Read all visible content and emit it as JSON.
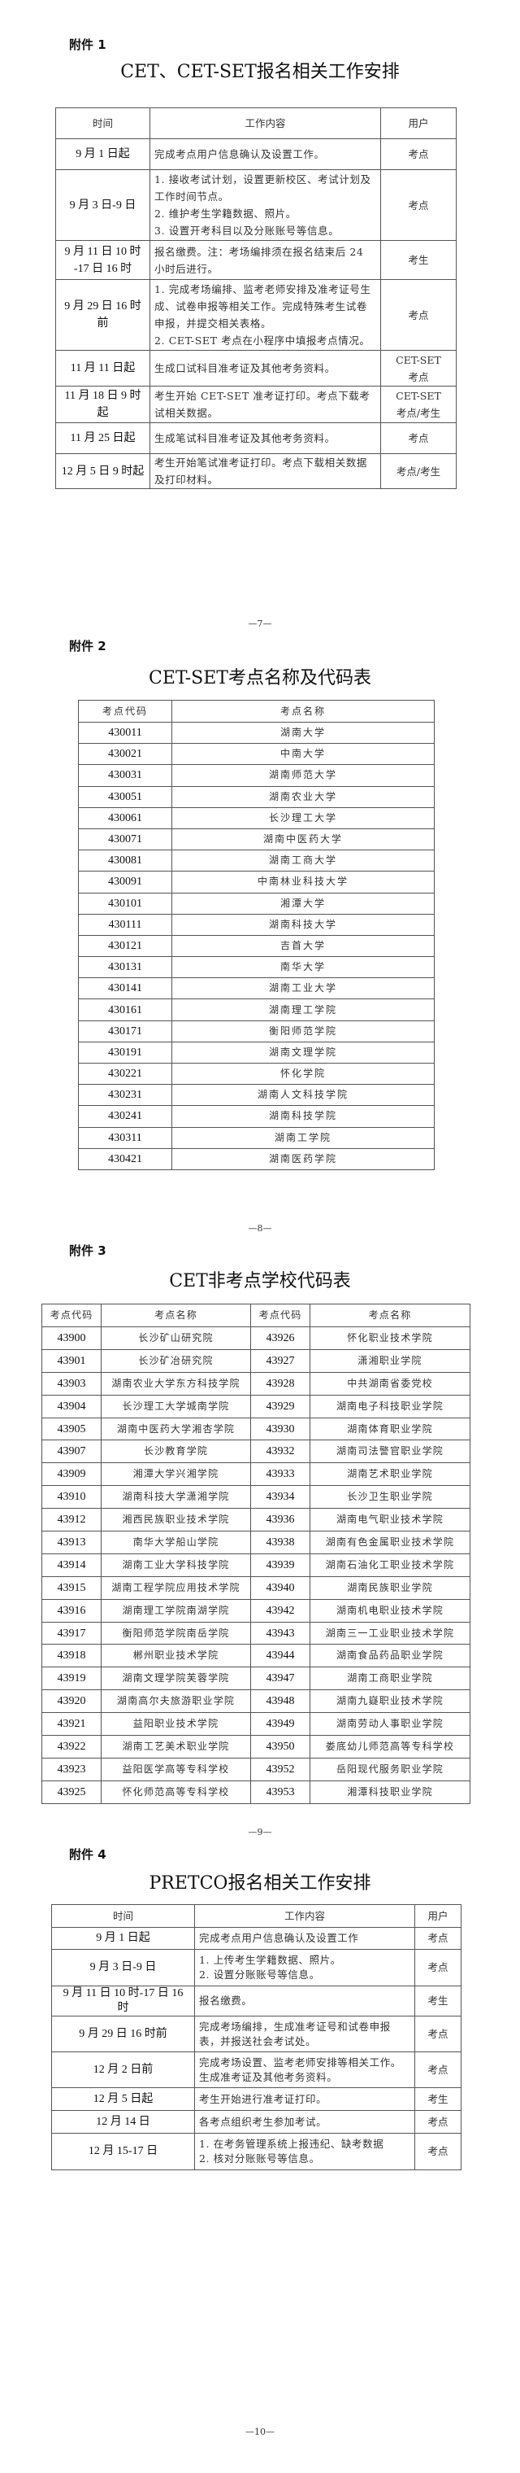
{
  "annex1": {
    "label": "附件 1",
    "title": "CET、CET-SET报名相关工作安排",
    "headers": [
      "时间",
      "工作内容",
      "用户"
    ],
    "rows": [
      {
        "time": [
          "9 月 1 日起"
        ],
        "content": [
          "完成考点用户信息确认及设置工作。"
        ],
        "user": [
          "考点"
        ]
      },
      {
        "time": [
          "9 月 3 日-9 日"
        ],
        "content": [
          "1. 接收考试计划，设置更新校区、考试计划及工作时间节点。",
          "2. 维护考生学籍数据、照片。",
          "3. 设置开考科目以及分账账号等信息。"
        ],
        "user": [
          "考点"
        ]
      },
      {
        "time": [
          "9 月 11 日 10 时",
          "-17 日 16 时"
        ],
        "content": [
          "报名缴费。注：考场编排须在报名结束后 24 小时后进行。"
        ],
        "user": [
          "考生"
        ]
      },
      {
        "time": [
          "9 月 29 日 16 时前"
        ],
        "content": [
          "1. 完成考场编排、监考老师安排及准考证号生成、试卷申报等相关工作。完成特殊考生试卷申报，并提交相关表格。",
          "2. CET-SET 考点在小程序中填报考点情况。"
        ],
        "user": [
          "考点"
        ]
      },
      {
        "time": [
          "11 月 11 日起"
        ],
        "content": [
          "生成口试科目准考证及其他考务资料。"
        ],
        "user": [
          "CET-SET",
          "考点"
        ]
      },
      {
        "time": [
          "11 月 18 日 9 时起"
        ],
        "content": [
          "考生开始 CET-SET 准考证打印。考点下载考试相关数据。"
        ],
        "user": [
          "CET-SET",
          "考点/考生"
        ]
      },
      {
        "time": [
          "11 月 25 日起"
        ],
        "content": [
          "生成笔试科目准考证及其他考务资料。"
        ],
        "user": [
          "考点"
        ]
      },
      {
        "time": [
          "12 月 5 日 9 时起"
        ],
        "content": [
          "考生开始笔试准考证打印。考点下载相关数据及打印材料。"
        ],
        "user": [
          "考点/考生"
        ]
      }
    ],
    "page_number": "—7—"
  },
  "annex2": {
    "label": "附件 2",
    "title": "CET-SET考点名称及代码表",
    "headers": [
      "考点代码",
      "考点名称"
    ],
    "rows": [
      [
        "430011",
        "湖南大学"
      ],
      [
        "430021",
        "中南大学"
      ],
      [
        "430031",
        "湖南师范大学"
      ],
      [
        "430051",
        "湖南农业大学"
      ],
      [
        "430061",
        "长沙理工大学"
      ],
      [
        "430071",
        "湖南中医药大学"
      ],
      [
        "430081",
        "湖南工商大学"
      ],
      [
        "430091",
        "中南林业科技大学"
      ],
      [
        "430101",
        "湘潭大学"
      ],
      [
        "430111",
        "湖南科技大学"
      ],
      [
        "430121",
        "吉首大学"
      ],
      [
        "430131",
        "南华大学"
      ],
      [
        "430141",
        "湖南工业大学"
      ],
      [
        "430161",
        "湖南理工学院"
      ],
      [
        "430171",
        "衡阳师范学院"
      ],
      [
        "430191",
        "湖南文理学院"
      ],
      [
        "430221",
        "怀化学院"
      ],
      [
        "430231",
        "湖南人文科技学院"
      ],
      [
        "430241",
        "湖南科技学院"
      ],
      [
        "430311",
        "湖南工学院"
      ],
      [
        "430421",
        "湖南医药学院"
      ]
    ],
    "page_number": "—8—"
  },
  "annex3": {
    "label": "附件 3",
    "title": "CET非考点学校代码表",
    "headers": [
      "考点代码",
      "考点名称",
      "考点代码",
      "考点名称"
    ],
    "rows": [
      [
        "43900",
        "长沙矿山研究院",
        "43926",
        "怀化职业技术学院"
      ],
      [
        "43901",
        "长沙矿冶研究院",
        "43927",
        "潇湘职业学院"
      ],
      [
        "43903",
        "湖南农业大学东方科技学院",
        "43928",
        "中共湖南省委党校"
      ],
      [
        "43904",
        "长沙理工大学城南学院",
        "43929",
        "湖南电子科技职业学院"
      ],
      [
        "43905",
        "湖南中医药大学湘杏学院",
        "43930",
        "湖南体育职业学院"
      ],
      [
        "43907",
        "长沙教育学院",
        "43932",
        "湖南司法警官职业学院"
      ],
      [
        "43909",
        "湘潭大学兴湘学院",
        "43933",
        "湖南艺术职业学院"
      ],
      [
        "43910",
        "湖南科技大学潇湘学院",
        "43934",
        "长沙卫生职业学院"
      ],
      [
        "43912",
        "湘西民族职业技术学院",
        "43936",
        "湖南电气职业技术学院"
      ],
      [
        "43913",
        "南华大学船山学院",
        "43938",
        "湖南有色金属职业技术学院"
      ],
      [
        "43914",
        "湖南工业大学科技学院",
        "43939",
        "湖南石油化工职业技术学院"
      ],
      [
        "43915",
        "湖南工程学院应用技术学院",
        "43940",
        "湖南民族职业学院"
      ],
      [
        "43916",
        "湖南理工学院南湖学院",
        "43942",
        "湖南机电职业技术学院"
      ],
      [
        "43917",
        "衡阳师范学院南岳学院",
        "43943",
        "湖南三一工业职业技术学院"
      ],
      [
        "43918",
        "郴州职业技术学院",
        "43944",
        "湖南食品药品职业学院"
      ],
      [
        "43919",
        "湖南文理学院芙蓉学院",
        "43947",
        "湖南工商职业学院"
      ],
      [
        "43920",
        "湖南高尔夫旅游职业学院",
        "43948",
        "湖南九嶷职业技术学院"
      ],
      [
        "43921",
        "益阳职业技术学院",
        "43949",
        "湖南劳动人事职业学院"
      ],
      [
        "43922",
        "湖南工艺美术职业学院",
        "43950",
        "娄底幼儿师范高等专科学校"
      ],
      [
        "43923",
        "益阳医学高等专科学校",
        "43952",
        "岳阳现代服务职业学院"
      ],
      [
        "43925",
        "怀化师范高等专科学校",
        "43953",
        "湘潭科技职业学院"
      ]
    ],
    "page_number": "—9—"
  },
  "annex4": {
    "label": "附件 4",
    "title": "PRETCO报名相关工作安排",
    "headers": [
      "时间",
      "工作内容",
      "用户"
    ],
    "rows": [
      {
        "time": [
          "9 月 1 日起"
        ],
        "content": [
          "完成考点用户信息确认及设置工作"
        ],
        "user": [
          "考点"
        ]
      },
      {
        "time": [
          "9 月 3 日-9 日"
        ],
        "content": [
          "1. 上传考生学籍数据、照片。",
          "2. 设置分账账号等信息。"
        ],
        "user": [
          "考点"
        ]
      },
      {
        "time": [
          "9 月 11 日 10 时-17 日 16 时"
        ],
        "content": [
          "报名缴费。"
        ],
        "user": [
          "考生"
        ]
      },
      {
        "time": [
          "9 月 29 日 16 时前"
        ],
        "content": [
          "完成考场编排，生成准考证号和试卷申报表，并报送社会考试处。"
        ],
        "user": [
          "考点"
        ]
      },
      {
        "time": [
          "12 月 2 日前"
        ],
        "content": [
          "完成考场设置、监考老师安排等相关工作。生成准考证及其他考务资料。"
        ],
        "user": [
          "考点"
        ]
      },
      {
        "time": [
          "12 月 5 日起"
        ],
        "content": [
          "考生开始进行准考证打印。"
        ],
        "user": [
          "考生"
        ]
      },
      {
        "time": [
          "12 月 14 日"
        ],
        "content": [
          "各考点组织考生参加考试。"
        ],
        "user": [
          "考点"
        ]
      },
      {
        "time": [
          "12 月 15-17 日"
        ],
        "content": [
          "1. 在考务管理系统上报违纪、缺考数据",
          "2. 核对分账账号等信息。"
        ],
        "user": [
          "考点"
        ]
      }
    ],
    "page_number": "—10—"
  }
}
